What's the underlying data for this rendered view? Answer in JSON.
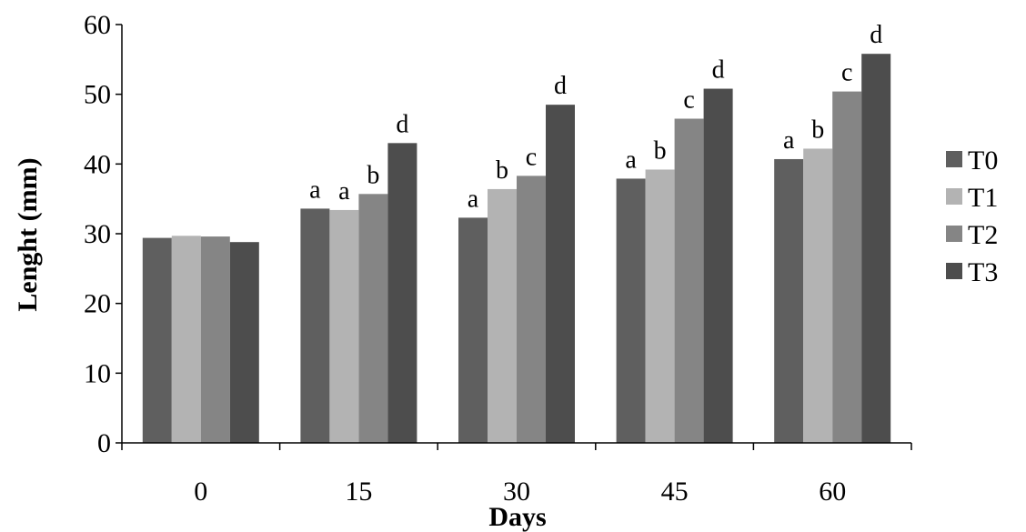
{
  "chart_data": {
    "type": "bar",
    "xlabel": "Days",
    "ylabel": "Lenght (mm)",
    "ylim": [
      0,
      60
    ],
    "yticks": [
      0,
      10,
      20,
      30,
      40,
      50,
      60
    ],
    "categories": [
      "0",
      "15",
      "30",
      "45",
      "60"
    ],
    "legend_position": "right",
    "series": [
      {
        "name": "T0",
        "color": "#5f5f5f",
        "values": [
          29.4,
          33.6,
          32.3,
          37.9,
          40.7
        ],
        "labels": [
          "",
          "a",
          "a",
          "a",
          "a"
        ]
      },
      {
        "name": "T1",
        "color": "#b3b3b3",
        "values": [
          29.7,
          33.4,
          36.4,
          39.2,
          42.2
        ],
        "labels": [
          "",
          "a",
          "b",
          "b",
          "b"
        ]
      },
      {
        "name": "T2",
        "color": "#858585",
        "values": [
          29.6,
          35.7,
          38.3,
          46.5,
          50.4
        ],
        "labels": [
          "",
          "b",
          "c",
          "c",
          "c"
        ]
      },
      {
        "name": "T3",
        "color": "#4d4d4d",
        "values": [
          28.8,
          43.0,
          48.5,
          50.8,
          55.8
        ],
        "labels": [
          "",
          "d",
          "d",
          "d",
          "d"
        ]
      }
    ]
  }
}
